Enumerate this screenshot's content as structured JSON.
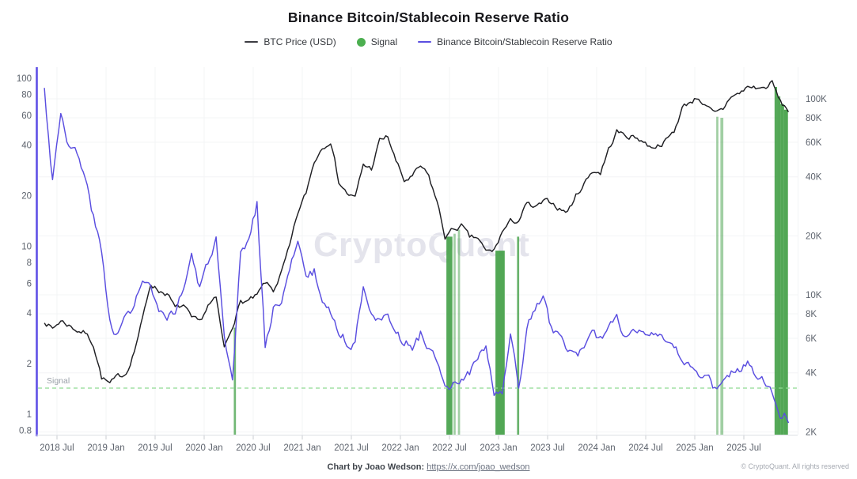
{
  "title": "Binance Bitcoin/Stablecoin Reserve Ratio",
  "watermark": "CryptoQuant",
  "signal_line_label": "Signal",
  "legend": [
    {
      "label": "BTC Price (USD)",
      "marker": "line",
      "color": "#3c3c42"
    },
    {
      "label": "Signal",
      "marker": "dot",
      "color": "#4caf50"
    },
    {
      "label": "Binance Bitcoin/Stablecoin Reserve Ratio",
      "marker": "line",
      "color": "#5a4ee0"
    }
  ],
  "footer": {
    "credit": "Chart by Joao Wedson:",
    "link": "https://x.com/joao_wedson",
    "copyright": "© CryptoQuant. All rights reserved"
  },
  "colors": {
    "btc_line": "#1f1f23",
    "ratio_line": "#5a4ee0",
    "left_axis_line": "#5f50e6",
    "signal_dash": "#8fdb92",
    "signal_band": "#43a047",
    "grid": "#f3f4f6",
    "axis_text": "#5d636d",
    "x_axis_line": "#e2e5e9"
  },
  "chart_data": {
    "type": "line",
    "title": "Binance Bitcoin/Stablecoin Reserve Ratio",
    "grid": true,
    "legend_position": "top",
    "x_ticks": [
      {
        "date": "2018-07-01",
        "label": "2018 Jul"
      },
      {
        "date": "2019-01-01",
        "label": "2019 Jan"
      },
      {
        "date": "2019-07-01",
        "label": "2019 Jul"
      },
      {
        "date": "2020-01-01",
        "label": "2020 Jan"
      },
      {
        "date": "2020-07-01",
        "label": "2020 Jul"
      },
      {
        "date": "2021-01-01",
        "label": "2021 Jan"
      },
      {
        "date": "2021-07-01",
        "label": "2021 Jul"
      },
      {
        "date": "2022-01-01",
        "label": "2022 Jan"
      },
      {
        "date": "2022-07-01",
        "label": "2022 Jul"
      },
      {
        "date": "2023-01-01",
        "label": "2023 Jan"
      },
      {
        "date": "2023-07-01",
        "label": "2023 Jul"
      },
      {
        "date": "2024-01-01",
        "label": "2024 Jan"
      },
      {
        "date": "2024-07-01",
        "label": "2024 Jul"
      },
      {
        "date": "2025-01-01",
        "label": "2025 Jan"
      },
      {
        "date": "2025-07-01",
        "label": "2025 Jul"
      }
    ],
    "left_axis": {
      "name": "Reserve Ratio",
      "scale": "log",
      "range": [
        0.75,
        116
      ],
      "ticks": [
        {
          "v": 100,
          "l": "100"
        },
        {
          "v": 80,
          "l": "80"
        },
        {
          "v": 60,
          "l": "60"
        },
        {
          "v": 40,
          "l": "40"
        },
        {
          "v": 20,
          "l": "20"
        },
        {
          "v": 10,
          "l": "10"
        },
        {
          "v": 8,
          "l": "8"
        },
        {
          "v": 6,
          "l": "6"
        },
        {
          "v": 4,
          "l": "4"
        },
        {
          "v": 2,
          "l": "2"
        },
        {
          "v": 1,
          "l": "1"
        },
        {
          "v": 0.8,
          "l": "0.8"
        }
      ]
    },
    "right_axis": {
      "name": "BTC Price (USD)",
      "scale": "log",
      "range": [
        1950,
        145000
      ],
      "ticks": [
        {
          "v": 100000,
          "l": "100K"
        },
        {
          "v": 80000,
          "l": "80K"
        },
        {
          "v": 60000,
          "l": "60K"
        },
        {
          "v": 40000,
          "l": "40K"
        },
        {
          "v": 20000,
          "l": "20K"
        },
        {
          "v": 10000,
          "l": "10K"
        },
        {
          "v": 8000,
          "l": "8K"
        },
        {
          "v": 6000,
          "l": "6K"
        },
        {
          "v": 4000,
          "l": "4K"
        },
        {
          "v": 2000,
          "l": "2K"
        }
      ]
    },
    "signal_level": 1.43,
    "signal_bands": [
      {
        "from": "2020-04-20",
        "to": "2020-04-28",
        "top_usd": 6800,
        "opacity": 0.75
      },
      {
        "from": "2022-06-20",
        "to": "2022-07-12",
        "top_usd": 19800,
        "opacity": 0.9
      },
      {
        "from": "2022-07-16",
        "to": "2022-07-24",
        "top_usd": 20500,
        "opacity": 0.5
      },
      {
        "from": "2022-08-02",
        "to": "2022-08-10",
        "top_usd": 21500,
        "opacity": 0.5
      },
      {
        "from": "2022-12-20",
        "to": "2023-01-24",
        "top_usd": 16800,
        "opacity": 0.92
      },
      {
        "from": "2023-03-09",
        "to": "2023-03-17",
        "top_usd": 19800,
        "opacity": 0.8
      },
      {
        "from": "2025-03-20",
        "to": "2025-03-28",
        "top_usd": 81000,
        "opacity": 0.5
      },
      {
        "from": "2025-04-05",
        "to": "2025-04-16",
        "top_usd": 80000,
        "opacity": 0.5
      },
      {
        "from": "2025-10-24",
        "to": "2025-11-03",
        "top_usd": 115000,
        "opacity": 0.9
      },
      {
        "from": "2025-11-03",
        "to": "2025-11-15",
        "top_usd": 103000,
        "opacity": 0.92
      },
      {
        "from": "2025-11-15",
        "to": "2025-11-29",
        "top_usd": 94000,
        "opacity": 0.92
      },
      {
        "from": "2025-11-29",
        "to": "2025-12-13",
        "top_usd": 88000,
        "opacity": 0.92
      }
    ],
    "series": [
      {
        "name": "BTC Price (USD)",
        "axis": "right",
        "color": "#1f1f23",
        "start_month": "2018-05",
        "monthly_values": [
          7400,
          6700,
          7400,
          7000,
          6600,
          6400,
          5600,
          3800,
          3500,
          3800,
          4000,
          5200,
          7500,
          11500,
          10500,
          10200,
          8500,
          8800,
          7500,
          7200,
          8800,
          9500,
          5300,
          7000,
          9200,
          9300,
          9800,
          11500,
          10500,
          13000,
          17500,
          26000,
          33000,
          48000,
          57000,
          62000,
          38000,
          33000,
          31000,
          46000,
          44000,
          61000,
          64000,
          48000,
          38000,
          40000,
          45000,
          40000,
          30000,
          19800,
          21500,
          22500,
          19500,
          19500,
          16500,
          16800,
          21000,
          23500,
          24000,
          29000,
          27500,
          29500,
          29800,
          27500,
          26500,
          32000,
          37000,
          43000,
          42000,
          55000,
          68000,
          65000,
          64000,
          62000,
          57000,
          58000,
          61000,
          68000,
          90000,
          97000,
          102000,
          90000,
          83000,
          88000,
          104000,
          106000,
          115000,
          114000,
          113000,
          121000,
          96000,
          87000
        ]
      },
      {
        "name": "Binance Bitcoin/Stablecoin Reserve Ratio",
        "axis": "left",
        "color": "#5a4ee0",
        "start_month": "2018-05",
        "monthly_values": [
          85,
          25,
          65,
          40,
          35,
          25,
          15,
          9,
          3.6,
          3.0,
          3.8,
          4.5,
          6.2,
          5.5,
          4.0,
          3.4,
          4.2,
          5.5,
          9.0,
          5.5,
          8.0,
          11,
          2.6,
          1.45,
          9.0,
          11,
          18,
          2.6,
          4.2,
          5.0,
          6.9,
          11.5,
          6.4,
          7.0,
          4.7,
          4.2,
          3.0,
          2.7,
          2.6,
          6.0,
          4.2,
          3.8,
          3.6,
          3.2,
          2.7,
          2.5,
          3.0,
          2.6,
          2.0,
          1.35,
          1.45,
          1.65,
          1.75,
          2.2,
          2.4,
          1.3,
          1.35,
          2.8,
          1.45,
          3.2,
          4.2,
          5.0,
          3.2,
          2.8,
          2.5,
          2.3,
          2.4,
          2.8,
          2.9,
          3.2,
          3.9,
          2.9,
          3.2,
          3.4,
          3.1,
          2.9,
          2.5,
          2.4,
          2.1,
          1.9,
          1.8,
          1.65,
          1.42,
          1.58,
          1.76,
          1.87,
          2.0,
          1.8,
          1.65,
          1.34,
          1.05,
          0.95
        ]
      }
    ]
  }
}
